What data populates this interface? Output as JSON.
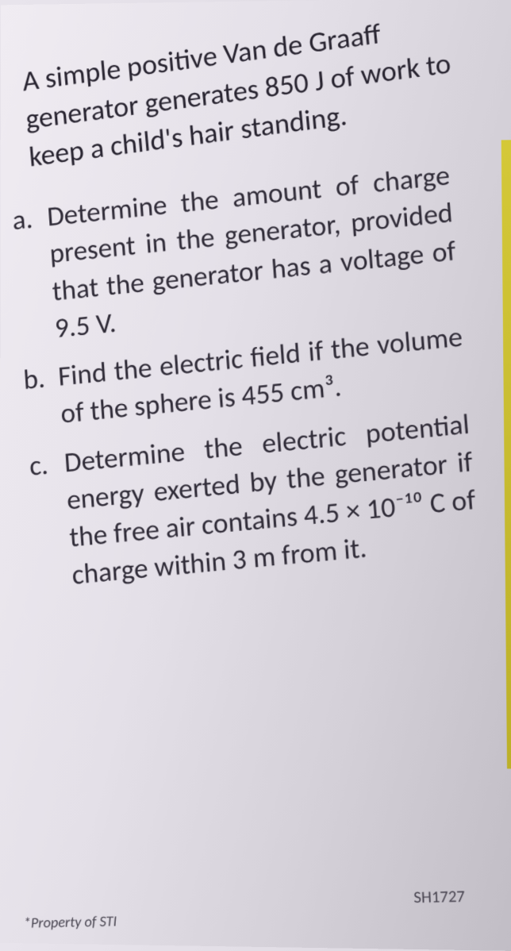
{
  "intro": "A simple positive Van de Graaff generator generates 850 J of work to keep a child's hair standing.",
  "items": [
    {
      "marker": "a.",
      "text": "Determine the amount of charge present in the generator, provided that the generator has a voltage of 9.5 V."
    },
    {
      "marker": "b.",
      "text": "Find the electric field if the volume of the sphere is 455 cm³."
    },
    {
      "marker": "c.",
      "text": "Determine the electric potential energy exerted by the generator if the free air contains 4.5 × 10⁻¹⁰ C of charge within 3 m from it."
    }
  ],
  "footer": {
    "left": "*Property of STI",
    "right": "SH1727"
  },
  "style": {
    "background_color": "#e4e0e8",
    "text_color": "#302c38",
    "accent_strip_color": "#c8bc30",
    "intro_fontsize": 36,
    "item_fontsize": 35,
    "footer_fontsize": 18,
    "font_family": "Calibri"
  }
}
